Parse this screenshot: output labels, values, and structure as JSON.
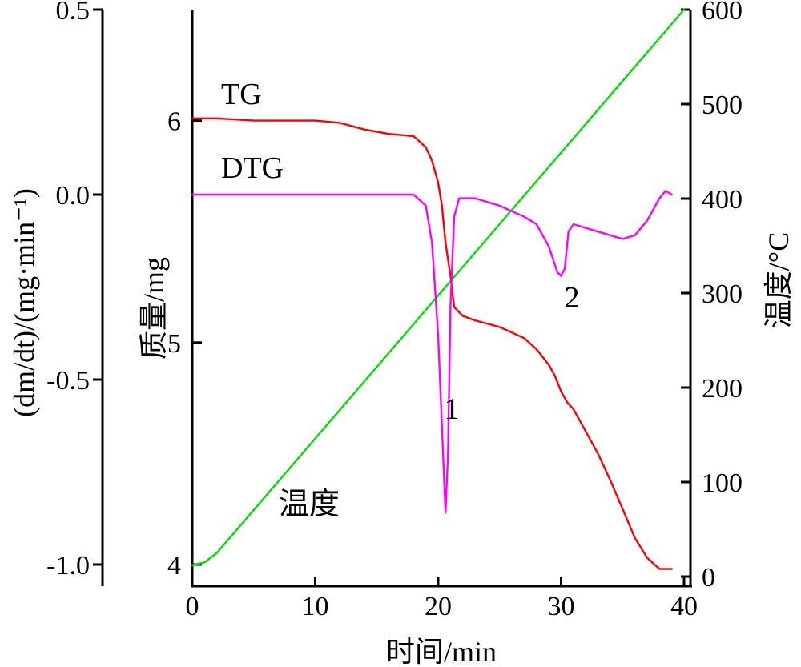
{
  "chart_data": {
    "type": "line",
    "xlabel": "时间/min",
    "ylabel_left": "(dm/dt)/(mg·min⁻¹)",
    "ylabel_middle": "质量/mg",
    "ylabel_right": "温度/°C",
    "x_ticks": [
      "0",
      "10",
      "20",
      "30",
      "40"
    ],
    "left_ticks": [
      "0.5",
      "0.0",
      "-0.5",
      "-1.0"
    ],
    "middle_ticks": [
      "6",
      "5",
      "4"
    ],
    "right_ticks": [
      "600",
      "500",
      "400",
      "300",
      "200",
      "100",
      "0"
    ],
    "xlim": [
      0,
      40
    ],
    "ylim_left": [
      -1.0,
      0.5
    ],
    "ylim_middle": [
      4,
      6.5
    ],
    "ylim_right": [
      0,
      600
    ],
    "grid": false,
    "annotations": [
      {
        "text": "TG",
        "series": "TG"
      },
      {
        "text": "DTG",
        "series": "DTG"
      },
      {
        "text": "温度",
        "series": "温度"
      },
      {
        "text": "1",
        "x": 20.6,
        "note_axis": "DTG peak"
      },
      {
        "text": "2",
        "x": 30.3,
        "note_axis": "DTG peak"
      }
    ],
    "series": [
      {
        "name": "TG",
        "color": "#ff0000",
        "axis": "middle",
        "x": [
          0,
          2,
          5,
          10,
          12,
          14,
          16,
          18,
          19,
          19.5,
          20,
          20.3,
          20.6,
          21,
          21.3,
          22,
          23,
          25,
          27,
          28,
          29,
          29.5,
          30,
          30.5,
          31,
          32,
          33,
          34,
          35,
          36,
          37,
          38,
          39
        ],
        "values": [
          6.01,
          6.01,
          6.0,
          6.0,
          5.99,
          5.96,
          5.94,
          5.93,
          5.88,
          5.82,
          5.72,
          5.62,
          5.45,
          5.3,
          5.16,
          5.12,
          5.1,
          5.07,
          5.02,
          4.97,
          4.9,
          4.85,
          4.78,
          4.73,
          4.7,
          4.6,
          4.5,
          4.38,
          4.25,
          4.12,
          4.03,
          3.98,
          3.98
        ]
      },
      {
        "name": "DTG",
        "color": "#ff00ff",
        "axis": "left",
        "x": [
          0,
          5,
          10,
          15,
          18,
          19,
          19.5,
          20,
          20.3,
          20.6,
          20.8,
          21,
          21.3,
          21.7,
          22,
          23,
          25,
          27,
          28,
          29,
          29.7,
          30,
          30.3,
          30.6,
          31,
          32,
          33,
          34,
          35,
          36,
          37,
          38,
          38.5,
          39
        ],
        "values": [
          0.0,
          0.0,
          0.0,
          0.0,
          0.0,
          -0.03,
          -0.13,
          -0.38,
          -0.62,
          -0.86,
          -0.7,
          -0.3,
          -0.06,
          -0.01,
          -0.01,
          -0.01,
          -0.03,
          -0.06,
          -0.08,
          -0.14,
          -0.21,
          -0.22,
          -0.2,
          -0.1,
          -0.08,
          -0.09,
          -0.1,
          -0.11,
          -0.12,
          -0.11,
          -0.07,
          -0.01,
          0.01,
          0.0
        ]
      },
      {
        "name": "温度",
        "color": "#00e000",
        "axis": "right",
        "x": [
          0,
          1,
          2,
          40
        ],
        "values": [
          12,
          15,
          25,
          600
        ]
      }
    ]
  }
}
